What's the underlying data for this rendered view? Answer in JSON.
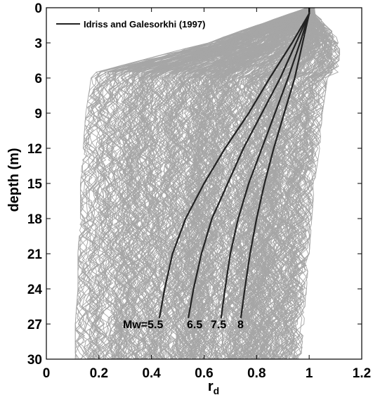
{
  "chart_data": {
    "type": "line",
    "xlabel": "r",
    "xlabel_sub": "d",
    "ylabel": "depth (m)",
    "xlim": [
      0,
      1.2
    ],
    "ylim": [
      0,
      30
    ],
    "y_inverted": true,
    "xticks": [
      0,
      0.2,
      0.4,
      0.6,
      0.8,
      1,
      1.2
    ],
    "xtick_labels": [
      "0",
      "0.2",
      "0.4",
      "0.6",
      "0.8",
      "1",
      "1.2"
    ],
    "yticks": [
      0,
      3,
      6,
      9,
      12,
      15,
      18,
      21,
      24,
      27,
      30
    ],
    "ytick_labels": [
      "0",
      "3",
      "6",
      "9",
      "12",
      "15",
      "18",
      "21",
      "24",
      "27",
      "30"
    ],
    "grid": false,
    "legend": {
      "placement": "top-left",
      "entries": [
        "Idriss and Galesorkhi (1997)"
      ]
    },
    "background_traces": {
      "count": "many",
      "color": "#a6a6a6",
      "envelope": {
        "depth": [
          0,
          3,
          5.5,
          6,
          9,
          12,
          15,
          18,
          21,
          24,
          27,
          30
        ],
        "rd_min": [
          1.0,
          0.62,
          0.2,
          0.18,
          0.16,
          0.15,
          0.14,
          0.14,
          0.13,
          0.13,
          0.12,
          0.12
        ],
        "rd_max": [
          1.0,
          1.1,
          1.09,
          1.05,
          1.03,
          1.02,
          1.0,
          0.99,
          0.98,
          0.97,
          0.96,
          0.95
        ]
      }
    },
    "series": [
      {
        "name": "Idriss and Galesorkhi (1997)",
        "annotation": "Mw=5.5",
        "color": "#222222",
        "depth": [
          0.5,
          3,
          6,
          9,
          12,
          15,
          18,
          21,
          24,
          26.5
        ],
        "rd": [
          1.0,
          0.935,
          0.85,
          0.77,
          0.68,
          0.6,
          0.53,
          0.48,
          0.45,
          0.43
        ]
      },
      {
        "name": "Idriss and Galesorkhi (1997)",
        "annotation": "6.5",
        "color": "#222222",
        "depth": [
          0.5,
          3,
          6,
          9,
          12,
          15,
          18,
          21,
          24,
          26.5
        ],
        "rd": [
          1.0,
          0.95,
          0.89,
          0.82,
          0.75,
          0.69,
          0.63,
          0.59,
          0.56,
          0.54
        ]
      },
      {
        "name": "Idriss and Galesorkhi (1997)",
        "annotation": "7.5",
        "color": "#222222",
        "depth": [
          0.5,
          3,
          6,
          9,
          12,
          15,
          18,
          21,
          24,
          26.5
        ],
        "rd": [
          1.0,
          0.965,
          0.92,
          0.87,
          0.82,
          0.77,
          0.73,
          0.7,
          0.68,
          0.665
        ]
      },
      {
        "name": "Idriss and Galesorkhi (1997)",
        "annotation": "8",
        "color": "#222222",
        "depth": [
          0.5,
          3,
          6,
          9,
          12,
          15,
          18,
          21,
          24,
          26.5
        ],
        "rd": [
          1.0,
          0.975,
          0.945,
          0.905,
          0.865,
          0.83,
          0.8,
          0.775,
          0.755,
          0.74
        ]
      }
    ],
    "annotation_texts": [
      "Mw=5.5",
      "6.5",
      "7.5",
      "8"
    ]
  }
}
